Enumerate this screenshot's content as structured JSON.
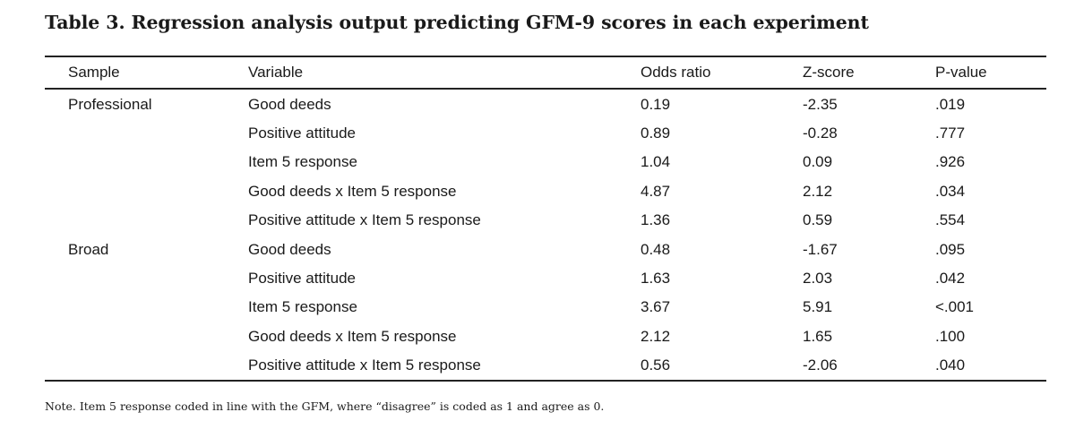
{
  "title": "Table 3. Regression analysis output predicting GFM-9 scores in each experiment",
  "columns": {
    "sample": "Sample",
    "variable": "Variable",
    "odds": "Odds ratio",
    "z": "Z-score",
    "p": "P-value"
  },
  "rows": [
    {
      "sample": "Professional",
      "variable": "Good deeds",
      "odds": "0.19",
      "z": "-2.35",
      "p": ".019"
    },
    {
      "sample": "",
      "variable": "Positive attitude",
      "odds": "0.89",
      "z": "-0.28",
      "p": ".777"
    },
    {
      "sample": "",
      "variable": "Item 5 response",
      "odds": "1.04",
      "z": "0.09",
      "p": ".926"
    },
    {
      "sample": "",
      "variable": "Good deeds x Item 5 response",
      "odds": "4.87",
      "z": "2.12",
      "p": ".034"
    },
    {
      "sample": "",
      "variable": "Positive attitude x Item 5 response",
      "odds": "1.36",
      "z": "0.59",
      "p": ".554"
    },
    {
      "sample": "Broad",
      "variable": "Good deeds",
      "odds": "0.48",
      "z": "-1.67",
      "p": ".095"
    },
    {
      "sample": "",
      "variable": "Positive attitude",
      "odds": "1.63",
      "z": "2.03",
      "p": ".042"
    },
    {
      "sample": "",
      "variable": "Item 5 response",
      "odds": "3.67",
      "z": "5.91",
      "p": "<.001"
    },
    {
      "sample": "",
      "variable": "Good deeds x Item 5 response",
      "odds": "2.12",
      "z": "1.65",
      "p": ".100"
    },
    {
      "sample": "",
      "variable": "Positive attitude x Item 5 response",
      "odds": "0.56",
      "z": "-2.06",
      "p": ".040"
    }
  ],
  "note": "Note. Item 5 response coded in line with the GFM, where “disagree” is coded as 1 and agree as 0."
}
